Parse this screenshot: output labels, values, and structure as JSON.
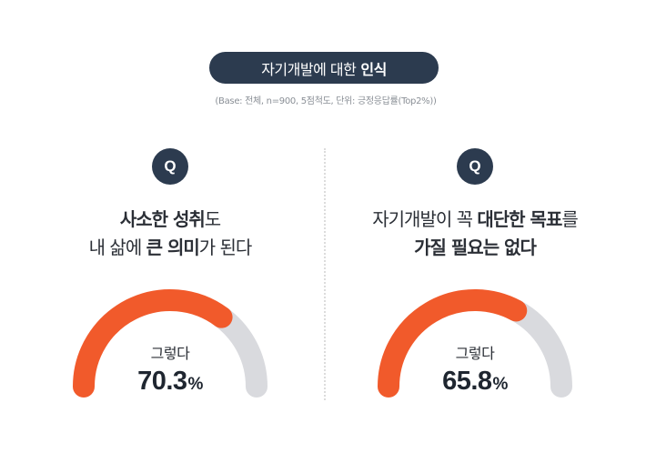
{
  "header": {
    "title_regular": "자기개발에 대한",
    "title_bold": "인식",
    "subtitle": "(Base: 전체, n=900, 5점척도, 단위: 긍정응답률(Top2%))"
  },
  "colors": {
    "navy": "#2c3b4f",
    "accent": "#f15a2b",
    "track": "#d9dade"
  },
  "panels": [
    {
      "badge": "Q",
      "question_line1": [
        {
          "text": "사소한 성취",
          "bold": true
        },
        {
          "text": "도",
          "bold": false
        }
      ],
      "question_line2": [
        {
          "text": "내 삶에 ",
          "bold": false
        },
        {
          "text": "큰 의미",
          "bold": true
        },
        {
          "text": "가 된다",
          "bold": false
        }
      ],
      "gauge_label": "그렇다",
      "value": "70.3",
      "unit": "%"
    },
    {
      "badge": "Q",
      "question_line1": [
        {
          "text": "자기개발이 꼭 ",
          "bold": false
        },
        {
          "text": "대단한 목표",
          "bold": true
        },
        {
          "text": "를",
          "bold": false
        }
      ],
      "question_line2": [
        {
          "text": "가질 필요는 없다",
          "bold": true
        }
      ],
      "gauge_label": "그렇다",
      "value": "65.8",
      "unit": "%"
    }
  ],
  "chart_data": {
    "type": "gauge",
    "title": "자기개발에 대한 인식",
    "subtitle": "(Base: 전체, n=900, 5점척도, 단위: 긍정응답률(Top2%))",
    "categories": [
      "사소한 성취도 내 삶에 큰 의미가 된다",
      "자기개발이 꼭 대단한 목표를 가질 필요는 없다"
    ],
    "series": [
      {
        "name": "그렇다",
        "values": [
          70.3,
          65.8
        ]
      }
    ],
    "ylim": [
      0,
      100
    ],
    "unit": "%"
  }
}
